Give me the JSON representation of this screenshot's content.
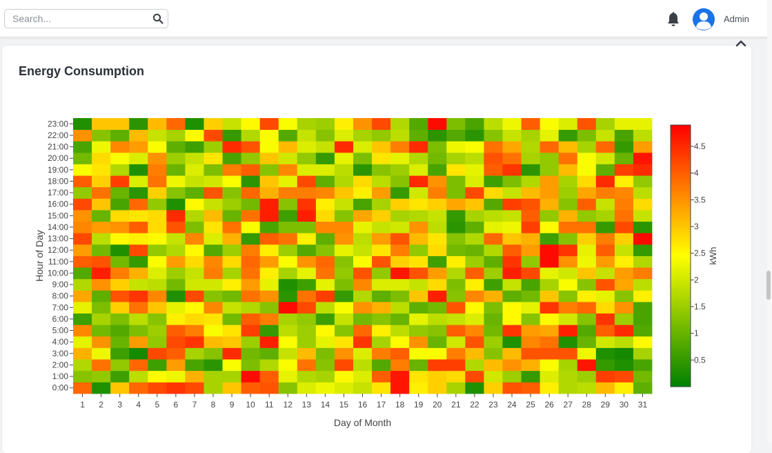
{
  "header": {
    "search_placeholder": "Search...",
    "user_name": "Admin"
  },
  "card": {
    "title": "Energy Consumption"
  },
  "chart_data": {
    "type": "heatmap",
    "title": "",
    "xlabel": "Day of Month",
    "ylabel": "Hour of Day",
    "x": [
      "1",
      "2",
      "3",
      "4",
      "5",
      "6",
      "7",
      "8",
      "9",
      "10",
      "11",
      "12",
      "13",
      "14",
      "15",
      "16",
      "17",
      "18",
      "19",
      "20",
      "21",
      "22",
      "23",
      "24",
      "25",
      "26",
      "27",
      "28",
      "29",
      "30",
      "31"
    ],
    "y": [
      "0:00",
      "1:00",
      "2:00",
      "3:00",
      "4:00",
      "5:00",
      "6:00",
      "7:00",
      "8:00",
      "9:00",
      "10:00",
      "11:00",
      "12:00",
      "13:00",
      "14:00",
      "15:00",
      "16:00",
      "17:00",
      "18:00",
      "19:00",
      "20:00",
      "21:00",
      "22:00",
      "23:00"
    ],
    "values": [
      [
        3.9,
        0.3,
        3.0,
        3.9,
        4.2,
        4.4,
        4.2,
        1.6,
        3.0,
        4.0,
        4.1,
        1.3,
        2.1,
        2.3,
        2.1,
        1.9,
        2.7,
        4.7,
        2.6,
        2.9,
        1.6,
        0.3,
        2.9,
        4.1,
        4.0,
        2.6,
        1.7,
        1.8,
        3.1,
        2.6,
        0.9
      ],
      [
        1.3,
        1.4,
        0.6,
        1.8,
        2.5,
        2.3,
        3.2,
        1.6,
        1.6,
        4.8,
        4.0,
        2.2,
        1.7,
        1.6,
        2.5,
        2.1,
        4.0,
        4.7,
        2.7,
        2.9,
        2.8,
        4.2,
        2.0,
        1.5,
        0.5,
        2.1,
        1.7,
        1.5,
        4.3,
        4.2,
        1.1
      ],
      [
        1.7,
        3.8,
        1.4,
        3.9,
        0.6,
        3.4,
        0.7,
        0.4,
        2.4,
        1.2,
        1.7,
        2.4,
        3.8,
        1.3,
        4.2,
        1.8,
        0.8,
        3.7,
        1.0,
        4.3,
        4.3,
        1.7,
        3.1,
        3.5,
        3.2,
        2.4,
        1.6,
        4.7,
        0.5,
        0.3,
        0.7
      ],
      [
        3.2,
        2.3,
        0.6,
        0.2,
        4.2,
        4.0,
        1.6,
        1.3,
        4.5,
        1.1,
        0.9,
        1.9,
        3.1,
        1.2,
        3.5,
        2.1,
        3.7,
        4.0,
        2.4,
        2.4,
        3.7,
        3.1,
        1.3,
        3.1,
        4.1,
        4.1,
        4.1,
        2.3,
        0.3,
        0.2,
        1.6
      ],
      [
        2.2,
        3.5,
        1.0,
        3.4,
        1.4,
        4.2,
        4.4,
        3.1,
        3.0,
        1.5,
        4.6,
        2.4,
        1.5,
        2.2,
        2.7,
        4.4,
        1.6,
        2.5,
        3.5,
        1.0,
        2.0,
        4.1,
        1.5,
        0.3,
        3.6,
        3.8,
        0.3,
        1.0,
        2.0,
        1.8,
        2.5
      ],
      [
        3.6,
        1.1,
        0.8,
        1.2,
        1.5,
        4.0,
        3.7,
        2.4,
        2.7,
        4.3,
        0.5,
        1.8,
        1.5,
        2.5,
        1.3,
        3.9,
        2.6,
        1.8,
        1.4,
        1.3,
        4.0,
        3.6,
        1.1,
        4.4,
        3.4,
        3.3,
        4.6,
        0.8,
        4.0,
        4.5,
        0.8
      ],
      [
        0.6,
        1.6,
        1.2,
        1.8,
        1.3,
        2.6,
        2.8,
        2.7,
        1.1,
        4.0,
        3.7,
        1.6,
        1.4,
        0.6,
        1.9,
        1.1,
        1.3,
        1.0,
        2.2,
        1.8,
        1.9,
        2.1,
        1.0,
        2.5,
        1.3,
        2.5,
        2.0,
        1.3,
        4.4,
        1.5,
        0.7
      ],
      [
        2.2,
        1.2,
        2.9,
        3.8,
        3.0,
        2.2,
        2.5,
        3.6,
        1.9,
        1.7,
        1.3,
        4.8,
        4.2,
        1.8,
        2.4,
        3.5,
        3.2,
        1.8,
        0.9,
        1.1,
        4.1,
        2.5,
        1.2,
        2.5,
        2.2,
        4.4,
        3.7,
        3.9,
        2.8,
        3.5,
        0.7
      ],
      [
        3.3,
        0.9,
        4.1,
        4.4,
        3.6,
        0.3,
        4.2,
        1.3,
        1.1,
        3.8,
        3.5,
        0.4,
        3.8,
        4.3,
        0.5,
        1.7,
        0.9,
        1.2,
        3.0,
        4.6,
        1.3,
        3.6,
        3.2,
        0.9,
        1.1,
        3.0,
        1.3,
        2.6,
        2.2,
        1.3,
        2.6
      ],
      [
        1.7,
        3.5,
        2.9,
        1.9,
        1.8,
        1.1,
        2.0,
        2.0,
        2.6,
        3.4,
        2.2,
        0.3,
        0.6,
        2.2,
        1.2,
        3.6,
        2.1,
        2.1,
        1.9,
        2.8,
        1.2,
        2.6,
        0.6,
        1.9,
        0.7,
        1.6,
        2.4,
        1.3,
        4.1,
        3.3,
        1.8
      ],
      [
        0.8,
        4.6,
        3.7,
        3.2,
        2.1,
        1.5,
        1.9,
        3.7,
        1.6,
        3.8,
        2.6,
        1.6,
        2.2,
        3.8,
        1.4,
        4.1,
        1.4,
        4.7,
        4.1,
        3.4,
        1.7,
        4.0,
        1.5,
        4.6,
        4.2,
        2.2,
        2.0,
        3.0,
        1.9,
        3.4,
        3.7
      ],
      [
        4.0,
        4.1,
        1.1,
        0.5,
        2.4,
        3.4,
        2.8,
        3.6,
        2.8,
        3.9,
        3.4,
        2.4,
        3.5,
        3.9,
        1.3,
        2.4,
        4.1,
        2.9,
        2.7,
        0.6,
        2.6,
        1.5,
        0.9,
        4.4,
        1.4,
        4.8,
        3.5,
        2.3,
        3.4,
        2.6,
        1.7
      ],
      [
        3.4,
        1.1,
        0.3,
        4.2,
        1.4,
        1.7,
        2.5,
        0.8,
        1.5,
        3.7,
        2.6,
        1.5,
        0.8,
        1.3,
        2.2,
        1.9,
        2.7,
        3.7,
        1.4,
        2.8,
        1.1,
        1.0,
        1.7,
        4.0,
        3.4,
        4.8,
        4.4,
        2.2,
        4.0,
        1.9,
        0.5
      ],
      [
        4.2,
        1.8,
        2.5,
        2.6,
        2.5,
        1.9,
        3.6,
        2.1,
        3.2,
        0.5,
        4.0,
        3.8,
        2.6,
        0.9,
        3.5,
        1.8,
        3.4,
        4.1,
        3.1,
        2.7,
        1.3,
        1.7,
        3.9,
        3.0,
        3.2,
        0.6,
        1.3,
        2.9,
        3.7,
        2.9,
        4.8
      ],
      [
        3.6,
        3.4,
        3.5,
        4.0,
        2.8,
        4.1,
        1.2,
        2.7,
        3.8,
        2.4,
        0.7,
        1.2,
        1.2,
        3.6,
        3.6,
        2.2,
        1.9,
        2.0,
        3.5,
        1.8,
        0.4,
        0.9,
        2.2,
        2.3,
        4.3,
        2.5,
        3.8,
        3.8,
        0.5,
        4.2,
        0.4
      ],
      [
        3.5,
        1.0,
        2.8,
        2.7,
        2.8,
        4.5,
        1.7,
        3.1,
        1.0,
        3.8,
        4.6,
        0.6,
        4.6,
        2.8,
        1.3,
        3.3,
        2.9,
        1.6,
        1.7,
        1.9,
        0.5,
        1.6,
        1.8,
        1.9,
        4.0,
        1.4,
        3.2,
        1.4,
        1.6,
        3.8,
        1.9
      ],
      [
        4.2,
        3.0,
        0.7,
        3.9,
        1.4,
        0.3,
        2.5,
        1.9,
        1.5,
        1.1,
        4.6,
        1.3,
        4.4,
        2.6,
        1.9,
        0.7,
        1.6,
        2.9,
        2.7,
        2.9,
        3.3,
        3.0,
        0.8,
        4.3,
        4.1,
        3.2,
        1.3,
        4.0,
        1.9,
        3.7,
        2.8
      ],
      [
        1.4,
        3.8,
        1.0,
        0.4,
        2.9,
        1.3,
        0.9,
        4.1,
        1.3,
        3.9,
        3.2,
        3.7,
        3.7,
        3.6,
        3.0,
        2.6,
        3.4,
        0.5,
        2.0,
        3.7,
        1.2,
        4.2,
        2.8,
        1.9,
        3.1,
        3.4,
        1.5,
        3.3,
        3.7,
        3.6,
        1.8
      ],
      [
        4.0,
        2.9,
        4.3,
        2.1,
        3.8,
        2.3,
        1.9,
        2.0,
        2.4,
        0.4,
        3.0,
        2.2,
        4.2,
        0.9,
        1.7,
        2.8,
        1.8,
        1.3,
        4.5,
        3.5,
        1.2,
        2.1,
        0.6,
        1.2,
        1.7,
        3.4,
        1.6,
        2.8,
        4.5,
        2.6,
        1.4
      ],
      [
        2.4,
        2.7,
        1.7,
        0.3,
        3.7,
        1.0,
        2.1,
        1.2,
        3.7,
        4.0,
        1.3,
        3.6,
        2.1,
        2.1,
        1.8,
        0.4,
        1.3,
        1.5,
        2.1,
        0.7,
        2.7,
        2.2,
        4.0,
        4.4,
        0.4,
        1.4,
        3.1,
        2.4,
        0.9,
        4.3,
        4.5
      ],
      [
        1.1,
        2.8,
        2.4,
        2.1,
        3.5,
        1.5,
        1.9,
        2.7,
        0.7,
        1.4,
        3.0,
        2.0,
        1.4,
        0.5,
        2.2,
        1.2,
        2.7,
        2.2,
        1.7,
        1.1,
        1.6,
        1.8,
        4.1,
        3.8,
        1.6,
        1.4,
        3.8,
        2.4,
        2.0,
        1.0,
        4.7
      ],
      [
        0.7,
        2.3,
        3.6,
        3.4,
        2.4,
        0.9,
        0.6,
        1.5,
        4.5,
        4.1,
        2.4,
        3.1,
        2.1,
        1.9,
        4.5,
        2.1,
        3.0,
        3.7,
        4.5,
        1.2,
        2.3,
        2.4,
        3.8,
        3.3,
        1.7,
        3.9,
        3.1,
        1.6,
        3.9,
        0.5,
        3.4
      ],
      [
        3.5,
        1.3,
        0.9,
        3.1,
        1.9,
        1.6,
        2.5,
        4.2,
        0.5,
        1.7,
        2.4,
        0.8,
        1.9,
        1.3,
        2.1,
        1.6,
        1.4,
        1.8,
        0.9,
        0.4,
        0.8,
        0.4,
        1.3,
        1.9,
        1.6,
        2.2,
        0.5,
        1.2,
        1.9,
        0.7,
        1.8
      ],
      [
        0.3,
        3.0,
        3.0,
        0.4,
        3.1,
        3.9,
        0.3,
        2.9,
        1.9,
        2.5,
        4.2,
        2.4,
        1.6,
        1.5,
        2.6,
        3.5,
        4.2,
        1.7,
        0.8,
        4.8,
        1.2,
        0.7,
        1.8,
        2.3,
        4.0,
        2.4,
        2.1,
        4.1,
        1.6,
        2.2,
        2.2
      ]
    ],
    "zmin": 0,
    "zmax": 4.9,
    "colorscale": [
      "#008000",
      "#ffff00",
      "#ff0000"
    ],
    "colorbar": {
      "title": "kWh",
      "ticks": [
        "0.5",
        "1",
        "1.5",
        "2",
        "2.5",
        "3",
        "3.5",
        "4",
        "4.5"
      ]
    },
    "grid": false
  }
}
